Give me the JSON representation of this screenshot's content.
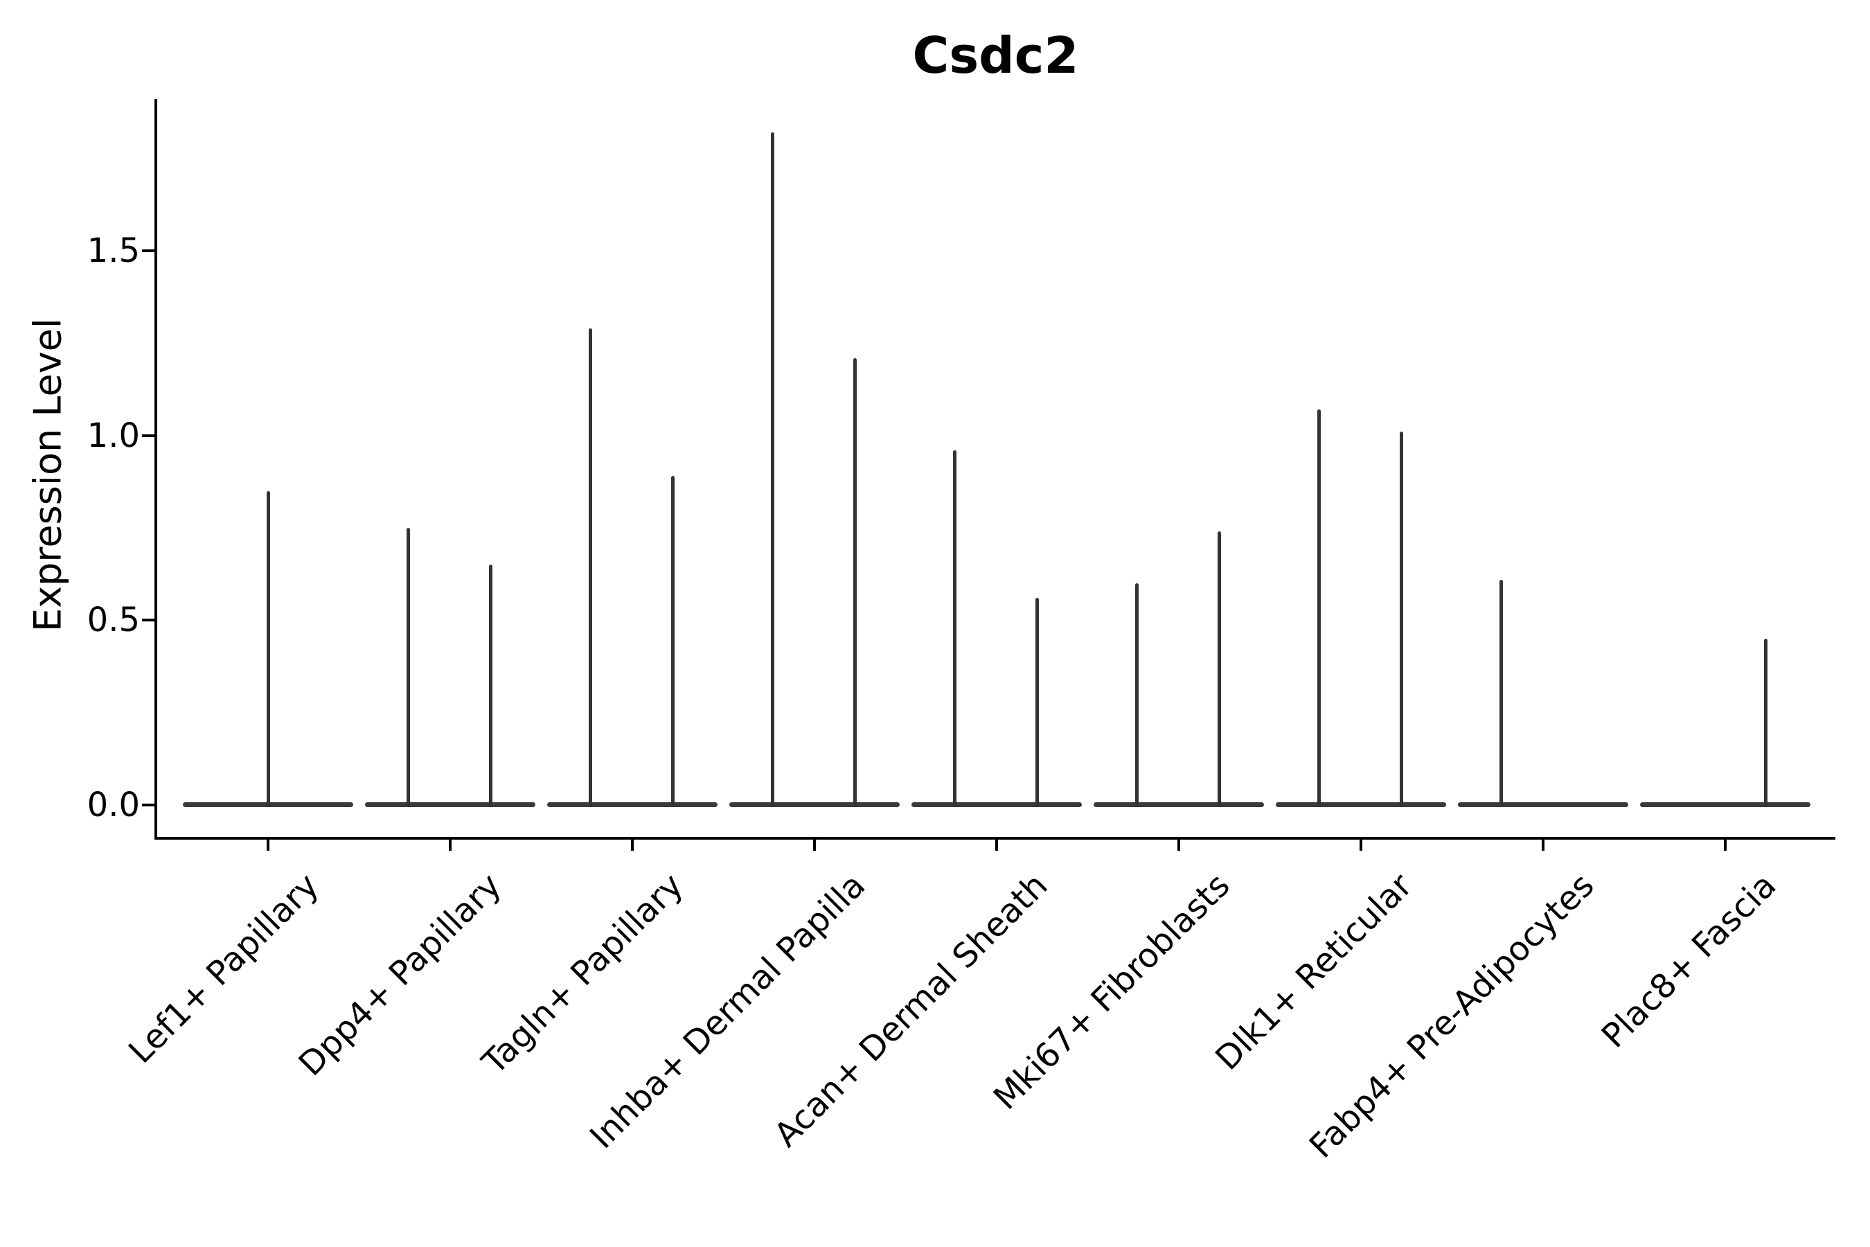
{
  "figure": {
    "title": "Csdc2",
    "ylabel": "Expression Level"
  },
  "chart_data": {
    "type": "violin",
    "title": "Csdc2",
    "xlabel": "",
    "ylabel": "Expression Level",
    "ylim": [
      0,
      1.9
    ],
    "ytick_values": [
      0.0,
      0.5,
      1.0,
      1.5
    ],
    "ytick_labels": [
      "0.0",
      "0.5",
      "1.0",
      "1.5"
    ],
    "grid": false,
    "legend": null,
    "background": "#ffffff",
    "axis_color": "#000000",
    "violin_color": "#333333",
    "categories": [
      "Lef1+ Papillary",
      "Dpp4+ Papillary",
      "Tagln+ Papillary",
      "Inhba+ Dermal Papilla",
      "Acan+ Dermal Sheath",
      "Mki67+ Fibroblasts",
      "Dlk1+ Reticular",
      "Fabp4+ Pre-Adipocytes",
      "Plac8+ Fascia"
    ],
    "violins": [
      {
        "category": "Lef1+ Papillary",
        "base_at_zero": true,
        "spikes": [
          {
            "slot": "center",
            "max": 0.85
          }
        ]
      },
      {
        "category": "Dpp4+ Papillary",
        "base_at_zero": true,
        "spikes": [
          {
            "slot": "left",
            "max": 0.75
          },
          {
            "slot": "right",
            "max": 0.65
          }
        ]
      },
      {
        "category": "Tagln+ Papillary",
        "base_at_zero": true,
        "spikes": [
          {
            "slot": "left",
            "max": 1.29
          },
          {
            "slot": "right",
            "max": 0.89
          }
        ]
      },
      {
        "category": "Inhba+ Dermal Papilla",
        "base_at_zero": true,
        "spikes": [
          {
            "slot": "left",
            "max": 1.82
          },
          {
            "slot": "right",
            "max": 1.21
          }
        ]
      },
      {
        "category": "Acan+ Dermal Sheath",
        "base_at_zero": true,
        "spikes": [
          {
            "slot": "left",
            "max": 0.96
          },
          {
            "slot": "right",
            "max": 0.56
          }
        ]
      },
      {
        "category": "Mki67+ Fibroblasts",
        "base_at_zero": true,
        "spikes": [
          {
            "slot": "left",
            "max": 0.6
          },
          {
            "slot": "right",
            "max": 0.74
          }
        ]
      },
      {
        "category": "Dlk1+ Reticular",
        "base_at_zero": true,
        "spikes": [
          {
            "slot": "left",
            "max": 1.07
          },
          {
            "slot": "right",
            "max": 1.01
          }
        ]
      },
      {
        "category": "Fabp4+ Pre-Adipocytes",
        "base_at_zero": true,
        "spikes": [
          {
            "slot": "left",
            "max": 0.61
          }
        ]
      },
      {
        "category": "Plac8+ Fascia",
        "base_at_zero": true,
        "spikes": [
          {
            "slot": "right",
            "max": 0.45
          }
        ]
      }
    ]
  }
}
